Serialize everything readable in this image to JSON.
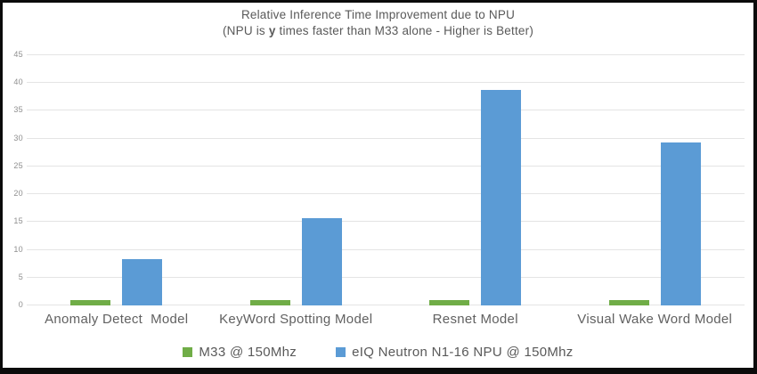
{
  "chart_data": {
    "type": "bar",
    "title": "Relative Inference Time Improvement due to NPU",
    "subtitle_prefix": "(NPU is",
    "subtitle_bold": "y",
    "subtitle_suffix": "times faster than M33 alone - Higher is Better)",
    "categories": [
      "Anomaly Detect  Model",
      "KeyWord Spotting Model",
      "Resnet Model",
      "Visual Wake Word Model"
    ],
    "series": [
      {
        "name": "M33 @ 150Mhz",
        "color": "#70AD47",
        "values": [
          1,
          1,
          1,
          1
        ]
      },
      {
        "name": "eIQ Neutron N1-16 NPU @ 150Mhz",
        "color": "#5B9BD5",
        "values": [
          8.4,
          15.7,
          38.7,
          29.3
        ]
      }
    ],
    "ylim": [
      0,
      45
    ],
    "yticks": [
      0,
      5,
      10,
      15,
      20,
      25,
      30,
      35,
      40,
      45
    ],
    "xlabel": "",
    "ylabel": "",
    "grid": true,
    "legend_position": "bottom"
  },
  "colors": {
    "m33_green": "#70AD47",
    "npu_blue": "#5B9BD5",
    "gridline": "#e4e4e4",
    "title_text": "#595959",
    "axis_text": "#8f8f8f",
    "frame_border": "#0b0b0b"
  }
}
